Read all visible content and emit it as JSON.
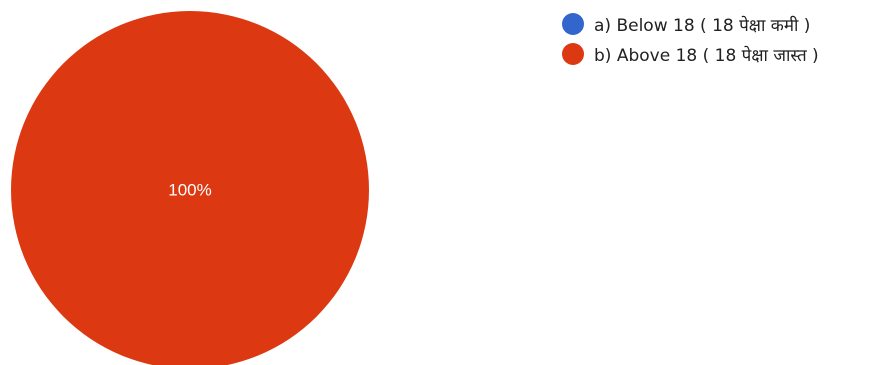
{
  "chart_data": {
    "type": "pie",
    "categories": [
      "a) Below 18 ( 18 पेक्षा कमी )",
      "b) Above 18 ( 18 पेक्षा जास्त )"
    ],
    "values": [
      0,
      100
    ],
    "slice_labels": [
      "",
      "100%"
    ],
    "colors": [
      "#3366cc",
      "#dc3912"
    ],
    "legend_position": "top-right"
  }
}
